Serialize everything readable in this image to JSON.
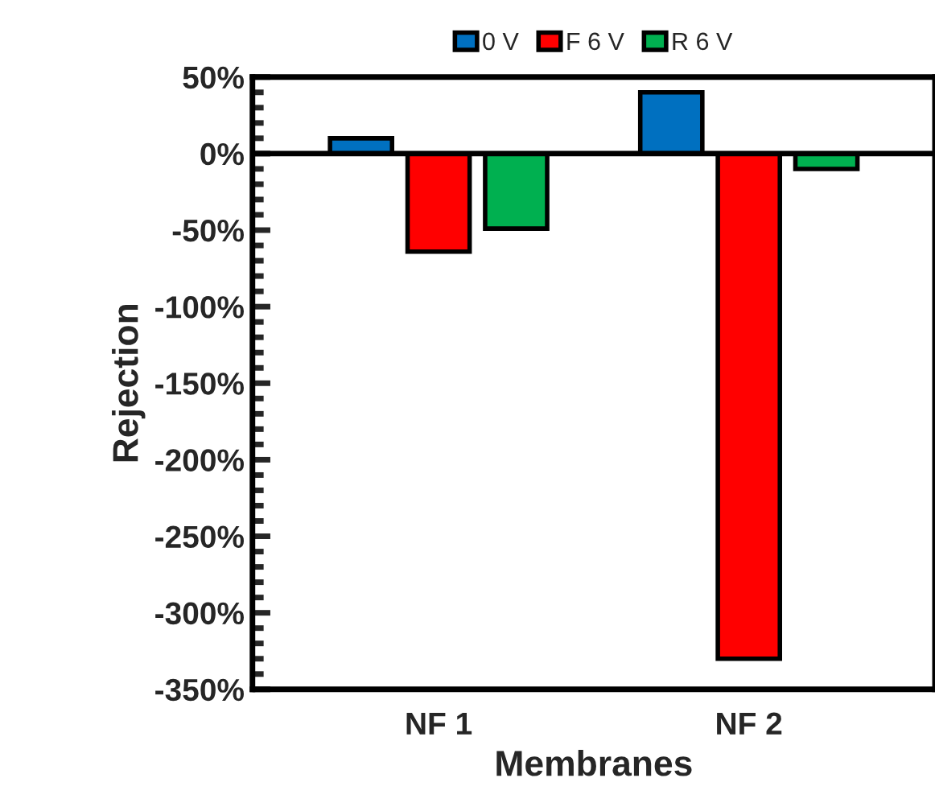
{
  "chart_data": {
    "type": "bar",
    "xlabel": "Membranes",
    "ylabel": "Rejection",
    "categories": [
      "NF 1",
      "NF 2"
    ],
    "series": [
      {
        "name": "0 V",
        "color": "#0070c0",
        "values": [
          10,
          40
        ]
      },
      {
        "name": "F 6 V",
        "color": "#ff0000",
        "values": [
          -64,
          -330
        ]
      },
      {
        "name": "R 6 V",
        "color": "#00b050",
        "values": [
          -49,
          -10
        ]
      }
    ],
    "ylim": [
      -350,
      50
    ],
    "yticks": [
      {
        "value": 50,
        "label": "50%"
      },
      {
        "value": 0,
        "label": "0%"
      },
      {
        "value": -50,
        "label": "-50%"
      },
      {
        "value": -100,
        "label": "-100%"
      },
      {
        "value": -150,
        "label": "-150%"
      },
      {
        "value": -200,
        "label": "-200%"
      },
      {
        "value": -250,
        "label": "-250%"
      },
      {
        "value": -300,
        "label": "-300%"
      },
      {
        "value": -350,
        "label": "-350%"
      }
    ],
    "ref_lines": [
      {
        "axis": "y",
        "value": 0,
        "color": "#000000",
        "line_style": "solid"
      }
    ],
    "legend": "top",
    "grid": false
  }
}
